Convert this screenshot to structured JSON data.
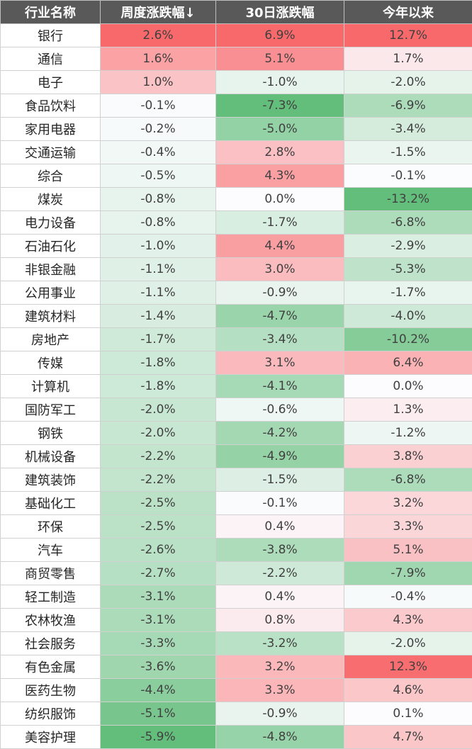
{
  "headers": [
    "行业名称",
    "周度涨跌幅↓",
    "30日涨跌幅",
    "今年以来"
  ],
  "rows": [
    {
      "name": "银行",
      "week": "2.6%",
      "d30": "6.9%",
      "ytd": "12.7%"
    },
    {
      "name": "通信",
      "week": "1.6%",
      "d30": "5.1%",
      "ytd": "1.7%"
    },
    {
      "name": "电子",
      "week": "1.0%",
      "d30": "-1.0%",
      "ytd": "-2.0%"
    },
    {
      "name": "食品饮料",
      "week": "-0.1%",
      "d30": "-7.3%",
      "ytd": "-6.9%"
    },
    {
      "name": "家用电器",
      "week": "-0.2%",
      "d30": "-5.0%",
      "ytd": "-3.4%"
    },
    {
      "name": "交通运输",
      "week": "-0.4%",
      "d30": "2.8%",
      "ytd": "-1.5%"
    },
    {
      "name": "综合",
      "week": "-0.5%",
      "d30": "4.3%",
      "ytd": "-0.1%"
    },
    {
      "name": "煤炭",
      "week": "-0.8%",
      "d30": "0.0%",
      "ytd": "-13.2%"
    },
    {
      "name": "电力设备",
      "week": "-0.8%",
      "d30": "-1.7%",
      "ytd": "-6.8%"
    },
    {
      "name": "石油石化",
      "week": "-1.0%",
      "d30": "4.4%",
      "ytd": "-2.9%"
    },
    {
      "name": "非银金融",
      "week": "-1.1%",
      "d30": "3.0%",
      "ytd": "-5.3%"
    },
    {
      "name": "公用事业",
      "week": "-1.1%",
      "d30": "-0.9%",
      "ytd": "-1.7%"
    },
    {
      "name": "建筑材料",
      "week": "-1.4%",
      "d30": "-4.7%",
      "ytd": "-4.0%"
    },
    {
      "name": "房地产",
      "week": "-1.7%",
      "d30": "-3.4%",
      "ytd": "-10.2%"
    },
    {
      "name": "传媒",
      "week": "-1.8%",
      "d30": "3.1%",
      "ytd": "6.4%"
    },
    {
      "name": "计算机",
      "week": "-1.8%",
      "d30": "-4.1%",
      "ytd": "0.0%"
    },
    {
      "name": "国防军工",
      "week": "-2.0%",
      "d30": "-0.6%",
      "ytd": "1.3%"
    },
    {
      "name": "钢铁",
      "week": "-2.0%",
      "d30": "-4.2%",
      "ytd": "-1.2%"
    },
    {
      "name": "机械设备",
      "week": "-2.2%",
      "d30": "-4.9%",
      "ytd": "3.8%"
    },
    {
      "name": "建筑装饰",
      "week": "-2.2%",
      "d30": "-1.5%",
      "ytd": "-6.8%"
    },
    {
      "name": "基础化工",
      "week": "-2.5%",
      "d30": "-0.1%",
      "ytd": "3.2%"
    },
    {
      "name": "环保",
      "week": "-2.5%",
      "d30": "0.4%",
      "ytd": "3.3%"
    },
    {
      "name": "汽车",
      "week": "-2.6%",
      "d30": "-3.8%",
      "ytd": "5.1%"
    },
    {
      "name": "商贸零售",
      "week": "-2.7%",
      "d30": "-2.2%",
      "ytd": "-7.9%"
    },
    {
      "name": "轻工制造",
      "week": "-3.1%",
      "d30": "0.4%",
      "ytd": "-0.4%"
    },
    {
      "name": "农林牧渔",
      "week": "-3.1%",
      "d30": "0.8%",
      "ytd": "4.3%"
    },
    {
      "name": "社会服务",
      "week": "-3.3%",
      "d30": "-3.2%",
      "ytd": "-2.0%"
    },
    {
      "name": "有色金属",
      "week": "-3.6%",
      "d30": "3.2%",
      "ytd": "12.3%"
    },
    {
      "name": "医药生物",
      "week": "-4.4%",
      "d30": "3.3%",
      "ytd": "4.6%"
    },
    {
      "name": "纺织服饰",
      "week": "-5.1%",
      "d30": "-0.9%",
      "ytd": "0.1%"
    },
    {
      "name": "美容护理",
      "week": "-5.9%",
      "d30": "-4.8%",
      "ytd": "4.7%"
    }
  ],
  "colors": {
    "header_bg": "#595959",
    "header_text": "#ffffff",
    "positive_max": "#f8696b",
    "neutral": "#fcfcff",
    "negative_max": "#63be7b"
  }
}
